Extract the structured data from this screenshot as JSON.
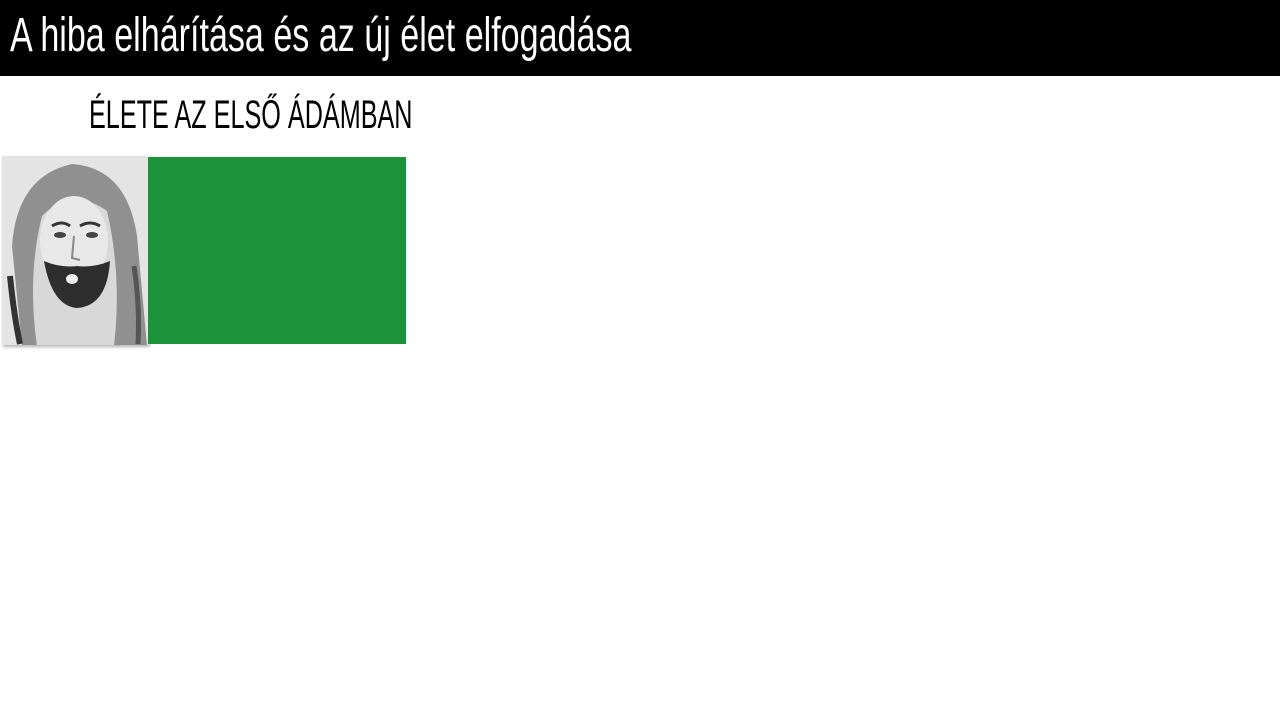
{
  "slide": {
    "title": "A hiba elhárítása és az új élet elfogadása",
    "subtitle": "ÉLETE AZ ELSŐ ÁDÁMBAN",
    "portrait_image": "watercolor-portrait-of-jesus",
    "colors": {
      "title_bar": "#000000",
      "green_box": "#1C933B"
    }
  }
}
